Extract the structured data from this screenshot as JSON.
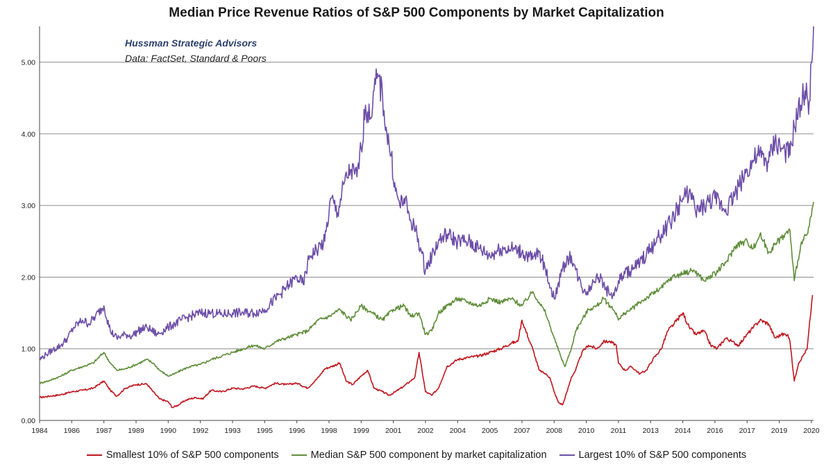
{
  "chart_data": {
    "type": "line",
    "title": "Median Price Revenue Ratios of S&P 500 Components by Market Capitalization",
    "subtitle": "Hussman Strategic Advisors",
    "source": "Data: FactSet, Standard & Poors",
    "xlabel": "",
    "ylabel": "",
    "ylim": [
      0,
      5.5
    ],
    "xlim": [
      1984.0,
      2020.1
    ],
    "grid": "horizontal",
    "legend_position": "bottom",
    "y_ticks": [
      "0.00",
      "1.00",
      "2.00",
      "3.00",
      "4.00",
      "5.00"
    ],
    "x_ticks": [
      {
        "label": "1984",
        "x": 1984.0
      },
      {
        "label": "1986",
        "x": 1985.5
      },
      {
        "label": "1987",
        "x": 1987.0
      },
      {
        "label": "1989",
        "x": 1988.5
      },
      {
        "label": "1990",
        "x": 1990.0
      },
      {
        "label": "1992",
        "x": 1991.5
      },
      {
        "label": "1993",
        "x": 1993.0
      },
      {
        "label": "1995",
        "x": 1994.5
      },
      {
        "label": "1996",
        "x": 1996.0
      },
      {
        "label": "1998",
        "x": 1997.5
      },
      {
        "label": "1999",
        "x": 1999.0
      },
      {
        "label": "2001",
        "x": 2000.5
      },
      {
        "label": "2002",
        "x": 2002.0
      },
      {
        "label": "2004",
        "x": 2003.5
      },
      {
        "label": "2005",
        "x": 2005.0
      },
      {
        "label": "2007",
        "x": 2006.5
      },
      {
        "label": "2008",
        "x": 2008.0
      },
      {
        "label": "2010",
        "x": 2009.5
      },
      {
        "label": "2011",
        "x": 2011.0
      },
      {
        "label": "2013",
        "x": 2012.5
      },
      {
        "label": "2014",
        "x": 2014.0
      },
      {
        "label": "2016",
        "x": 2015.5
      },
      {
        "label": "2017",
        "x": 2017.0
      },
      {
        "label": "2019",
        "x": 2018.5
      },
      {
        "label": "2020",
        "x": 2020.0
      }
    ],
    "series": [
      {
        "name": "Smallest 10% of S&P 500 components",
        "color": "#c0141c",
        "x": [
          1984.0,
          1984.5,
          1985.0,
          1985.5,
          1986.0,
          1986.5,
          1987.0,
          1987.3,
          1987.6,
          1988.0,
          1988.5,
          1989.0,
          1989.3,
          1989.6,
          1990.0,
          1990.2,
          1990.5,
          1990.8,
          1991.0,
          1991.3,
          1991.6,
          1992.0,
          1992.5,
          1993.0,
          1993.5,
          1994.0,
          1994.5,
          1995.0,
          1995.5,
          1996.0,
          1996.5,
          1997.0,
          1997.3,
          1997.6,
          1998.0,
          1998.3,
          1998.6,
          1999.0,
          1999.3,
          1999.6,
          2000.0,
          2000.3,
          2000.6,
          2001.0,
          2001.3,
          2001.5,
          2001.7,
          2002.0,
          2002.3,
          2002.6,
          2003.0,
          2003.5,
          2004.0,
          2004.5,
          2005.0,
          2005.5,
          2006.0,
          2006.3,
          2006.5,
          2006.8,
          2007.0,
          2007.3,
          2007.6,
          2007.8,
          2008.0,
          2008.2,
          2008.4,
          2008.6,
          2008.8,
          2009.0,
          2009.3,
          2009.6,
          2010.0,
          2010.3,
          2010.6,
          2010.9,
          2011.0,
          2011.3,
          2011.6,
          2012.0,
          2012.3,
          2012.6,
          2013.0,
          2013.3,
          2013.6,
          2014.0,
          2014.3,
          2014.6,
          2015.0,
          2015.3,
          2015.6,
          2016.0,
          2016.3,
          2016.6,
          2017.0,
          2017.3,
          2017.6,
          2018.0,
          2018.3,
          2018.6,
          2018.9,
          2019.0,
          2019.2,
          2019.4,
          2019.6,
          2019.8,
          2019.95,
          2020.05
        ],
        "values": [
          0.32,
          0.34,
          0.36,
          0.4,
          0.42,
          0.45,
          0.55,
          0.42,
          0.34,
          0.45,
          0.5,
          0.51,
          0.4,
          0.3,
          0.26,
          0.18,
          0.22,
          0.28,
          0.3,
          0.32,
          0.3,
          0.42,
          0.4,
          0.45,
          0.44,
          0.48,
          0.45,
          0.52,
          0.5,
          0.52,
          0.45,
          0.6,
          0.72,
          0.75,
          0.8,
          0.55,
          0.5,
          0.62,
          0.7,
          0.45,
          0.4,
          0.35,
          0.4,
          0.48,
          0.55,
          0.6,
          0.95,
          0.4,
          0.35,
          0.45,
          0.75,
          0.85,
          0.88,
          0.9,
          0.95,
          1.0,
          1.08,
          1.1,
          1.4,
          1.15,
          1.0,
          0.7,
          0.65,
          0.6,
          0.4,
          0.25,
          0.22,
          0.4,
          0.6,
          0.7,
          0.95,
          1.05,
          1.0,
          1.1,
          1.1,
          1.05,
          0.8,
          0.7,
          0.75,
          0.65,
          0.7,
          0.85,
          1.0,
          1.25,
          1.35,
          1.5,
          1.3,
          1.2,
          1.25,
          1.05,
          1.0,
          1.15,
          1.1,
          1.05,
          1.2,
          1.3,
          1.4,
          1.35,
          1.15,
          1.2,
          1.2,
          1.1,
          0.55,
          0.8,
          0.9,
          1.0,
          1.45,
          1.75
        ]
      },
      {
        "name": "Median S&P 500 component by market capitalization",
        "color": "#5f8d3a",
        "x": [
          1984.0,
          1984.5,
          1985.0,
          1985.5,
          1986.0,
          1986.5,
          1987.0,
          1987.3,
          1987.6,
          1988.0,
          1988.5,
          1989.0,
          1989.3,
          1989.6,
          1990.0,
          1990.3,
          1990.6,
          1991.0,
          1991.5,
          1992.0,
          1992.5,
          1993.0,
          1993.5,
          1994.0,
          1994.5,
          1995.0,
          1995.5,
          1996.0,
          1996.5,
          1997.0,
          1997.5,
          1998.0,
          1998.5,
          1999.0,
          1999.5,
          2000.0,
          2000.5,
          2001.0,
          2001.3,
          2001.7,
          2002.0,
          2002.3,
          2002.6,
          2003.0,
          2003.5,
          2004.0,
          2004.5,
          2005.0,
          2005.5,
          2006.0,
          2006.5,
          2007.0,
          2007.3,
          2007.6,
          2008.0,
          2008.3,
          2008.5,
          2008.8,
          2009.0,
          2009.3,
          2009.6,
          2010.0,
          2010.3,
          2010.6,
          2010.9,
          2011.0,
          2011.3,
          2011.6,
          2012.0,
          2012.5,
          2013.0,
          2013.5,
          2014.0,
          2014.5,
          2015.0,
          2015.5,
          2016.0,
          2016.5,
          2017.0,
          2017.3,
          2017.6,
          2018.0,
          2018.3,
          2018.6,
          2019.0,
          2019.2,
          2019.5,
          2019.8,
          2020.0,
          2020.1
        ],
        "values": [
          0.52,
          0.56,
          0.62,
          0.7,
          0.75,
          0.8,
          0.95,
          0.8,
          0.7,
          0.72,
          0.78,
          0.85,
          0.8,
          0.7,
          0.62,
          0.65,
          0.7,
          0.75,
          0.78,
          0.85,
          0.9,
          0.95,
          1.0,
          1.05,
          1.0,
          1.1,
          1.15,
          1.2,
          1.25,
          1.4,
          1.45,
          1.55,
          1.4,
          1.6,
          1.5,
          1.4,
          1.55,
          1.6,
          1.45,
          1.5,
          1.2,
          1.25,
          1.5,
          1.6,
          1.7,
          1.65,
          1.6,
          1.7,
          1.65,
          1.7,
          1.6,
          1.8,
          1.65,
          1.5,
          1.15,
          0.9,
          0.75,
          1.0,
          1.25,
          1.4,
          1.55,
          1.6,
          1.7,
          1.6,
          1.5,
          1.4,
          1.5,
          1.55,
          1.65,
          1.75,
          1.85,
          2.0,
          2.05,
          2.1,
          1.95,
          2.05,
          2.2,
          2.45,
          2.5,
          2.4,
          2.6,
          2.35,
          2.45,
          2.55,
          2.65,
          1.95,
          2.45,
          2.6,
          2.85,
          3.05
        ]
      },
      {
        "name": "Largest 10% of S&P 500 components",
        "color": "#6d4fa8",
        "x": [
          1984.0,
          1984.3,
          1984.6,
          1985.0,
          1985.3,
          1985.6,
          1986.0,
          1986.3,
          1986.6,
          1987.0,
          1987.3,
          1987.6,
          1988.0,
          1988.3,
          1988.6,
          1989.0,
          1989.5,
          1990.0,
          1990.3,
          1990.6,
          1991.0,
          1991.5,
          1992.0,
          1992.5,
          1993.0,
          1993.5,
          1994.0,
          1994.5,
          1995.0,
          1995.5,
          1996.0,
          1996.3,
          1996.6,
          1997.0,
          1997.3,
          1997.6,
          1997.9,
          1998.2,
          1998.5,
          1998.8,
          1999.0,
          1999.2,
          1999.4,
          1999.6,
          1999.8,
          2000.0,
          2000.2,
          2000.4,
          2000.6,
          2000.8,
          2001.0,
          2001.3,
          2001.6,
          2002.0,
          2002.3,
          2002.6,
          2003.0,
          2003.5,
          2004.0,
          2004.5,
          2005.0,
          2005.5,
          2006.0,
          2006.5,
          2007.0,
          2007.3,
          2007.6,
          2008.0,
          2008.3,
          2008.5,
          2008.8,
          2009.0,
          2009.3,
          2009.6,
          2010.0,
          2010.3,
          2010.6,
          2010.9,
          2011.0,
          2011.3,
          2011.6,
          2012.0,
          2012.5,
          2013.0,
          2013.5,
          2014.0,
          2014.3,
          2014.6,
          2015.0,
          2015.5,
          2016.0,
          2016.5,
          2017.0,
          2017.5,
          2018.0,
          2018.3,
          2018.6,
          2019.0,
          2019.2,
          2019.5,
          2019.7,
          2019.9,
          2020.0,
          2020.1
        ],
        "values": [
          0.85,
          0.92,
          0.98,
          1.05,
          1.15,
          1.3,
          1.4,
          1.35,
          1.45,
          1.6,
          1.25,
          1.15,
          1.2,
          1.18,
          1.25,
          1.3,
          1.2,
          1.3,
          1.35,
          1.4,
          1.45,
          1.5,
          1.5,
          1.48,
          1.5,
          1.5,
          1.5,
          1.55,
          1.7,
          1.85,
          2.0,
          1.9,
          2.3,
          2.4,
          2.5,
          3.1,
          2.9,
          3.3,
          3.5,
          3.4,
          3.8,
          4.4,
          4.2,
          4.6,
          4.8,
          4.5,
          4.0,
          3.7,
          3.2,
          3.0,
          3.1,
          2.8,
          2.6,
          2.1,
          2.3,
          2.5,
          2.6,
          2.5,
          2.5,
          2.4,
          2.3,
          2.4,
          2.4,
          2.35,
          2.25,
          2.35,
          2.1,
          1.7,
          2.0,
          2.2,
          2.3,
          2.1,
          1.85,
          1.8,
          2.05,
          1.9,
          1.75,
          1.8,
          1.95,
          2.05,
          2.1,
          2.2,
          2.4,
          2.6,
          2.8,
          3.1,
          3.2,
          2.9,
          3.0,
          3.1,
          2.95,
          3.2,
          3.5,
          3.7,
          3.6,
          3.9,
          3.8,
          3.7,
          4.1,
          4.4,
          4.6,
          4.45,
          5.0,
          5.5
        ]
      }
    ]
  }
}
